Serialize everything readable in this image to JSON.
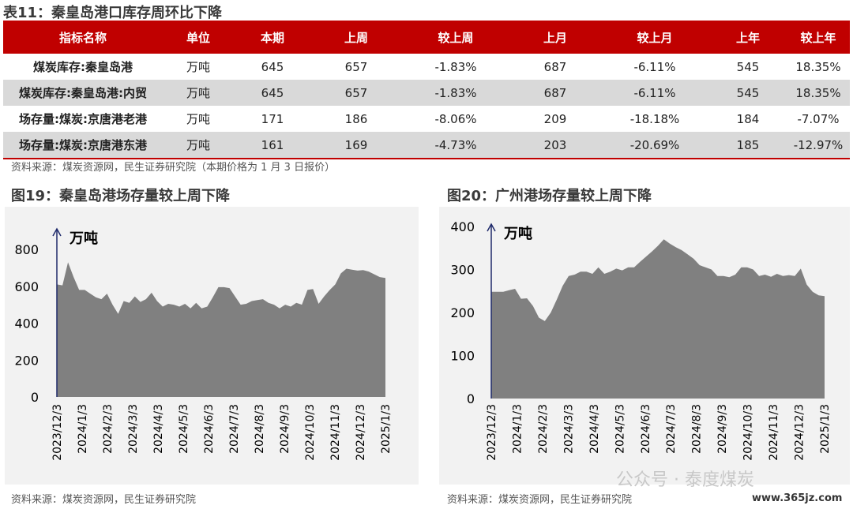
{
  "table": {
    "title": "表11：秦皇岛港口库存周环比下降",
    "headers": [
      "指标名称",
      "单位",
      "本期",
      "上周",
      "较上周",
      "上月",
      "较上月",
      "上年",
      "较上年"
    ],
    "rows": [
      [
        "煤炭库存:秦皇岛港",
        "万吨",
        "645",
        "657",
        "-1.83%",
        "687",
        "-6.11%",
        "545",
        "18.35%"
      ],
      [
        "煤炭库存:秦皇岛港:内贸",
        "万吨",
        "645",
        "657",
        "-1.83%",
        "687",
        "-6.11%",
        "545",
        "18.35%"
      ],
      [
        "场存量:煤炭:京唐港老港",
        "万吨",
        "171",
        "186",
        "-8.06%",
        "209",
        "-18.18%",
        "184",
        "-7.07%"
      ],
      [
        "场存量:煤炭:京唐港东港",
        "万吨",
        "161",
        "169",
        "-4.73%",
        "203",
        "-20.69%",
        "185",
        "-12.97%"
      ]
    ],
    "source": "资料来源：煤炭资源网，民生证券研究院（本期价格为 1 月 3 日报价）"
  },
  "figure19": {
    "title": "图19：秦皇岛港场存量较上周下降",
    "source": "资料来源：煤炭资源网，民生证券研究院"
  },
  "figure20": {
    "title": "图20：广州港场存量较上周下降",
    "source": "资料来源：煤炭资源网，民生证券研究院"
  },
  "watermark": {
    "text": "公众号 · 泰度煤炭",
    "site": "www.365jz.com"
  },
  "chart_data": [
    {
      "type": "area",
      "unit_label": "万吨",
      "color": "#808080",
      "x_ticks": [
        "2023/12/3",
        "2024/1/3",
        "2024/2/3",
        "2024/3/3",
        "2024/4/3",
        "2024/5/3",
        "2024/6/3",
        "2024/7/3",
        "2024/8/3",
        "2024/9/3",
        "2024/10/3",
        "2024/11/3",
        "2024/12/3",
        "2025/1/3"
      ],
      "y_ticks": [
        0,
        200,
        400,
        600,
        800
      ],
      "ylim": [
        0,
        800
      ],
      "values": [
        610,
        605,
        730,
        650,
        580,
        580,
        560,
        540,
        530,
        560,
        500,
        450,
        520,
        510,
        545,
        515,
        530,
        565,
        520,
        490,
        505,
        500,
        490,
        505,
        480,
        510,
        480,
        490,
        540,
        595,
        595,
        590,
        545,
        500,
        505,
        520,
        525,
        530,
        510,
        500,
        480,
        500,
        490,
        510,
        500,
        580,
        585,
        505,
        545,
        580,
        610,
        670,
        695,
        690,
        685,
        688,
        680,
        665,
        650,
        645
      ]
    },
    {
      "type": "area",
      "unit_label": "万吨",
      "color": "#808080",
      "x_ticks": [
        "2023/12/3",
        "2024/1/3",
        "2024/2/3",
        "2024/3/3",
        "2024/4/3",
        "2024/5/3",
        "2024/6/3",
        "2024/7/3",
        "2024/8/3",
        "2024/9/3",
        "2024/10/3",
        "2024/11/3",
        "2024/12/3",
        "2025/1/3"
      ],
      "y_ticks": [
        0,
        100,
        200,
        300,
        400
      ],
      "ylim": [
        0,
        400
      ],
      "values": [
        248,
        248,
        248,
        252,
        255,
        232,
        233,
        215,
        188,
        180,
        200,
        230,
        262,
        285,
        288,
        295,
        295,
        290,
        305,
        290,
        295,
        302,
        298,
        305,
        305,
        318,
        330,
        342,
        355,
        370,
        360,
        352,
        345,
        335,
        325,
        310,
        305,
        300,
        285,
        285,
        282,
        288,
        305,
        305,
        300,
        285,
        288,
        283,
        290,
        285,
        287,
        285,
        302,
        265,
        248,
        240,
        238
      ]
    }
  ]
}
